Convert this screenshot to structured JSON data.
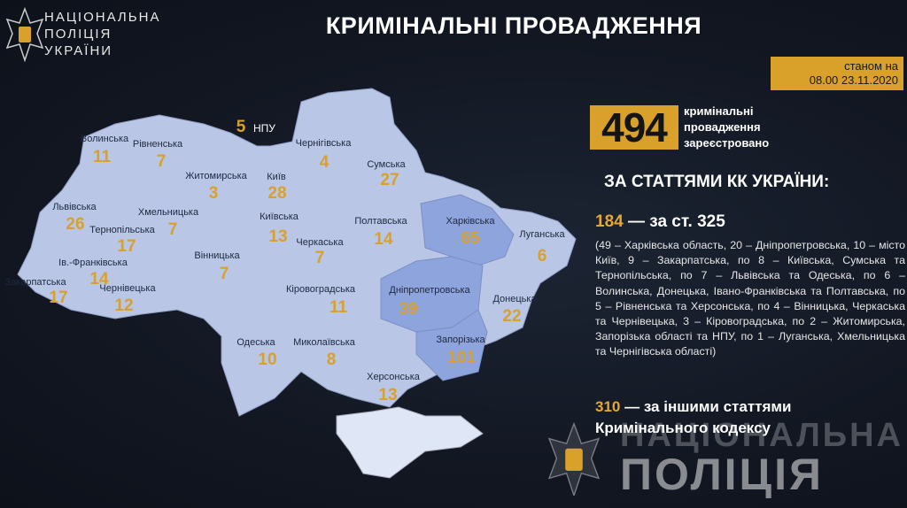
{
  "header": {
    "org_lines": [
      "НАЦІОНАЛЬНА",
      "ПОЛІЦІЯ",
      "УКРАЇНИ"
    ],
    "title": "КРИМІНАЛЬНІ ПРОВАДЖЕННЯ"
  },
  "date": {
    "line1": "станом на",
    "line2": "08.00 23.11.2020"
  },
  "total": {
    "value": "494",
    "lines": [
      "кримінальні",
      "провадження",
      "зареєстровано"
    ]
  },
  "subtitle": "ЗА СТАТТЯМИ КК УКРАЇНИ:",
  "art325": {
    "value": "184",
    "label": "— за ст. 325",
    "details": "(49 – Харківська область, 20 – Дніпропетровська, 10 – місто Київ, 9 – Закарпатська, по 8 – Київська, Сумська та Тернопільська, по 7 – Львівська та Одеська, по 6 – Волинська, Донецька, Івано-Франківська та Полтавська, по 5 – Рівненська та Херсонська, по 4 – Вінницька, Черкаська та Чернівецька, 3 – Кіровоградська, по 2 – Житомирська, Запорізька області та НПУ, по 1 – Луганська, Хмельницька та Чернігівська області)"
  },
  "other": {
    "value": "310",
    "label": "— за іншими статтями",
    "label2": "Кримінального кодексу"
  },
  "watermark": {
    "line1": "НАЦІОНАЛЬНА",
    "line2": "ПОЛІЦІЯ"
  },
  "npu": {
    "value": "5",
    "label": "НПУ"
  },
  "colors": {
    "accent": "#d9a12a",
    "map": "#b9c6e6",
    "highlight": "#8ea4dc",
    "background": "#121722"
  },
  "regions": [
    {
      "name": "Волинська",
      "value": "11"
    },
    {
      "name": "Рівненська",
      "value": "7"
    },
    {
      "name": "Житомирська",
      "value": "3"
    },
    {
      "name": "Київ",
      "value": "28"
    },
    {
      "name": "Чернігівська",
      "value": "4"
    },
    {
      "name": "Сумська",
      "value": "27"
    },
    {
      "name": "Львівська",
      "value": "26"
    },
    {
      "name": "Тернопільська",
      "value": "17"
    },
    {
      "name": "Хмельницька",
      "value": "7"
    },
    {
      "name": "Київська",
      "value": "13"
    },
    {
      "name": "Полтавська",
      "value": "14"
    },
    {
      "name": "Харківська",
      "value": "65"
    },
    {
      "name": "Луганська",
      "value": "6"
    },
    {
      "name": "Черкаська",
      "value": "7"
    },
    {
      "name": "Вінницька",
      "value": "7"
    },
    {
      "name": "Ів.-Франківська",
      "value": "14"
    },
    {
      "name": "Закарпатська",
      "value": "17"
    },
    {
      "name": "Чернівецька",
      "value": "12"
    },
    {
      "name": "Кіровоградська",
      "value": "11"
    },
    {
      "name": "Дніпропетровська",
      "value": "39"
    },
    {
      "name": "Донецька",
      "value": "22"
    },
    {
      "name": "Одеська",
      "value": "10"
    },
    {
      "name": "Миколаївська",
      "value": "8"
    },
    {
      "name": "Запорізька",
      "value": "101"
    },
    {
      "name": "Херсонська",
      "value": "13"
    }
  ]
}
